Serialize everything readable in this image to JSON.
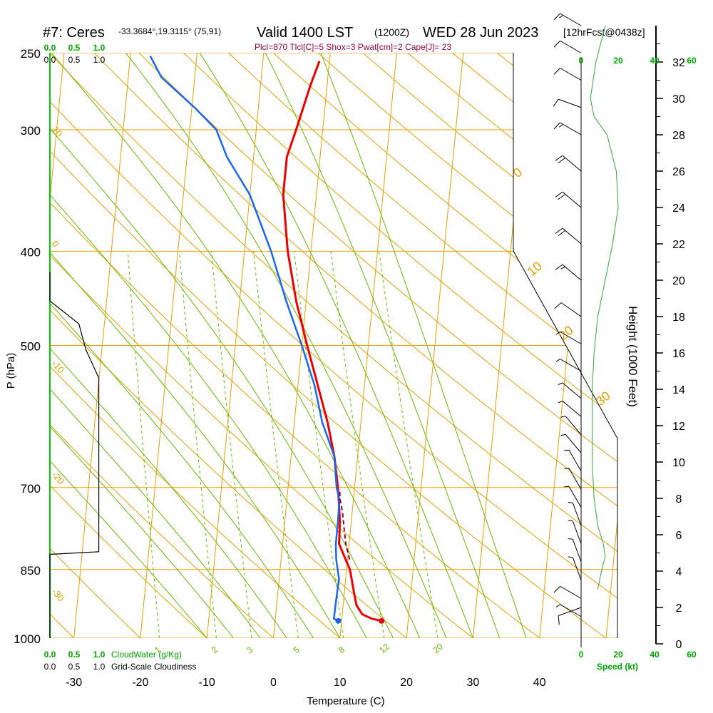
{
  "header": {
    "station": "#7: Ceres",
    "coords": "-33.3684°,19.3115° (75,91)",
    "valid": "Valid 1400 LST",
    "utc": "(1200Z)",
    "date": "WED 28 Jun 2023",
    "forecast": "[12hrFcst@0438z]",
    "indices": "Plcl=870 Tlcl[C]=5 Shox=3 Pwat[cm]=2 Cape[J]= 23"
  },
  "colors": {
    "isotherm": "#e8a000",
    "mixing_ratio": "#66bb00",
    "temperature": "#ee0000",
    "dewpoint": "#1a66ee",
    "parcel": "#880044",
    "cloud": "#000000",
    "wind_speed": "#00aa00"
  },
  "labels": {
    "cloudwater": "CloudWater (g/Kg)",
    "cloudiness": "Grid-Scale Cloudiness",
    "speed": "Speed (kt)",
    "height_axis": "Height (1000 Feet)"
  },
  "chart_data": {
    "type": "line",
    "title": "Valid 1400 LST (1200Z) WED 28 Jun 2023",
    "xlabel": "Temperature (C)",
    "ylabel": "P (hPa)",
    "xlim": [
      -35,
      45
    ],
    "ylim": [
      1000,
      250
    ],
    "y_scale": "log",
    "x_ticks": [
      "-30",
      "-20",
      "-10",
      "0",
      "10",
      "20",
      "30",
      "40"
    ],
    "pressure_ticks": [
      "250",
      "300",
      "400",
      "500",
      "700",
      "850",
      "1000"
    ],
    "height_ticks": [
      "0",
      "2",
      "4",
      "6",
      "8",
      "10",
      "12",
      "14",
      "16",
      "18",
      "20",
      "22",
      "24",
      "26",
      "28",
      "30",
      "32"
    ],
    "cloud_scale_top": [
      "0.0",
      "0.5",
      "1.0"
    ],
    "cloud_scale_bottom": [
      "0.0",
      "0.5",
      "1.0"
    ],
    "speed_ticks": [
      "0",
      "20",
      "40",
      "60"
    ],
    "mixing_ratio_labels": [
      "1",
      "2",
      "3",
      "5",
      "8",
      "12",
      "20"
    ],
    "dry_adiabat_labels": [
      "10",
      "0",
      "-10",
      "-20",
      "-30"
    ],
    "moist_adiabat_labels": [
      "0",
      "10",
      "20",
      "30"
    ],
    "series": [
      {
        "key": "temperature",
        "points": [
          {
            "p": 960,
            "t": 16.0
          },
          {
            "p": 955,
            "t": 14.5
          },
          {
            "p": 945,
            "t": 13.0
          },
          {
            "p": 925,
            "t": 12.0
          },
          {
            "p": 900,
            "t": 11.5
          },
          {
            "p": 850,
            "t": 10.5
          },
          {
            "p": 820,
            "t": 9.3
          },
          {
            "p": 800,
            "t": 8.5
          },
          {
            "p": 760,
            "t": 8.3
          },
          {
            "p": 720,
            "t": 7.8
          },
          {
            "p": 700,
            "t": 7.5
          },
          {
            "p": 650,
            "t": 6.5
          },
          {
            "p": 600,
            "t": 5.0
          },
          {
            "p": 550,
            "t": 3.0
          },
          {
            "p": 500,
            "t": 0.8
          },
          {
            "p": 450,
            "t": -1.5
          },
          {
            "p": 400,
            "t": -3.5
          },
          {
            "p": 350,
            "t": -5.0
          },
          {
            "p": 320,
            "t": -5.0
          },
          {
            "p": 300,
            "t": -4.0
          },
          {
            "p": 270,
            "t": -2.5
          },
          {
            "p": 255,
            "t": -1.5
          }
        ]
      },
      {
        "key": "dewpoint",
        "points": [
          {
            "p": 960,
            "t": 9.5
          },
          {
            "p": 955,
            "t": 8.8
          },
          {
            "p": 900,
            "t": 8.9
          },
          {
            "p": 870,
            "t": 9.0
          },
          {
            "p": 830,
            "t": 8.3
          },
          {
            "p": 800,
            "t": 8.0
          },
          {
            "p": 760,
            "t": 8.0
          },
          {
            "p": 720,
            "t": 7.9
          },
          {
            "p": 700,
            "t": 7.3
          },
          {
            "p": 650,
            "t": 6.5
          },
          {
            "p": 600,
            "t": 4.2
          },
          {
            "p": 550,
            "t": 2.5
          },
          {
            "p": 500,
            "t": 0.0
          },
          {
            "p": 450,
            "t": -3.0
          },
          {
            "p": 400,
            "t": -6.0
          },
          {
            "p": 350,
            "t": -10.0
          },
          {
            "p": 320,
            "t": -14.0
          },
          {
            "p": 300,
            "t": -16.0
          },
          {
            "p": 285,
            "t": -19.5
          },
          {
            "p": 265,
            "t": -25.0
          },
          {
            "p": 252,
            "t": -27.0
          }
        ]
      },
      {
        "key": "parcel",
        "points": [
          {
            "p": 830,
            "t": 10.3
          },
          {
            "p": 800,
            "t": 9.5
          },
          {
            "p": 770,
            "t": 9.0
          },
          {
            "p": 740,
            "t": 8.5
          },
          {
            "p": 720,
            "t": 8.0
          },
          {
            "p": 705,
            "t": 7.8
          }
        ]
      }
    ],
    "cloudiness_profile": [
      {
        "p": 1000,
        "c": 0.0
      },
      {
        "p": 820,
        "c": 0.0
      },
      {
        "p": 815,
        "c": 0.98
      },
      {
        "p": 540,
        "c": 0.98
      },
      {
        "p": 505,
        "c": 0.72
      },
      {
        "p": 475,
        "c": 0.58
      },
      {
        "p": 450,
        "c": 0.0
      },
      {
        "p": 420,
        "c": 0.0
      }
    ],
    "wind_speed_profile": [
      {
        "z": 3.0,
        "s": 9
      },
      {
        "z": 4.0,
        "s": 11
      },
      {
        "z": 4.8,
        "s": 13
      },
      {
        "z": 5.5,
        "s": 12
      },
      {
        "z": 6.5,
        "s": 9
      },
      {
        "z": 8,
        "s": 7
      },
      {
        "z": 10,
        "s": 6
      },
      {
        "z": 12,
        "s": 6
      },
      {
        "z": 14,
        "s": 6
      },
      {
        "z": 16,
        "s": 7
      },
      {
        "z": 18,
        "s": 9
      },
      {
        "z": 20,
        "s": 13
      },
      {
        "z": 22,
        "s": 17
      },
      {
        "z": 24,
        "s": 20
      },
      {
        "z": 26,
        "s": 19
      },
      {
        "z": 28,
        "s": 14
      },
      {
        "z": 29,
        "s": 7
      },
      {
        "z": 30,
        "s": 5
      },
      {
        "z": 32,
        "s": 8
      },
      {
        "z": 34,
        "s": 13
      }
    ],
    "wind_barbs": [
      {
        "z": 1.5,
        "dir": 300,
        "spd": 5
      },
      {
        "z": 2.0,
        "dir": 250,
        "spd": 10
      },
      {
        "z": 2.5,
        "dir": 300,
        "spd": 10
      },
      {
        "z": 3.5,
        "dir": 340,
        "spd": 5
      },
      {
        "z": 4.5,
        "dir": 340,
        "spd": 5
      },
      {
        "z": 5.5,
        "dir": 340,
        "spd": 5
      },
      {
        "z": 6.5,
        "dir": 340,
        "spd": 5
      },
      {
        "z": 7.5,
        "dir": 330,
        "spd": 5
      },
      {
        "z": 8.5,
        "dir": 330,
        "spd": 5
      },
      {
        "z": 9.5,
        "dir": 330,
        "spd": 5
      },
      {
        "z": 10.5,
        "dir": 320,
        "spd": 5
      },
      {
        "z": 11.5,
        "dir": 320,
        "spd": 5
      },
      {
        "z": 12.5,
        "dir": 310,
        "spd": 5
      },
      {
        "z": 13.5,
        "dir": 310,
        "spd": 5
      },
      {
        "z": 15.0,
        "dir": 300,
        "spd": 5
      },
      {
        "z": 16.5,
        "dir": 300,
        "spd": 5
      },
      {
        "z": 18.0,
        "dir": 305,
        "spd": 10
      },
      {
        "z": 20.0,
        "dir": 310,
        "spd": 15
      },
      {
        "z": 22.0,
        "dir": 310,
        "spd": 20
      },
      {
        "z": 24.0,
        "dir": 310,
        "spd": 20
      },
      {
        "z": 26.0,
        "dir": 310,
        "spd": 20
      },
      {
        "z": 28.0,
        "dir": 300,
        "spd": 15
      },
      {
        "z": 29.5,
        "dir": 290,
        "spd": 10
      },
      {
        "z": 31.0,
        "dir": 300,
        "spd": 10
      },
      {
        "z": 32.5,
        "dir": 300,
        "spd": 10
      },
      {
        "z": 34.0,
        "dir": 300,
        "spd": 15
      }
    ]
  }
}
